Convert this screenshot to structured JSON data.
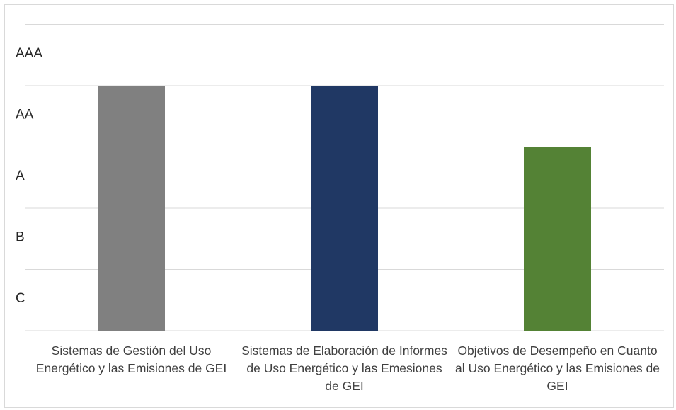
{
  "chart_data": {
    "type": "bar",
    "title": "",
    "xlabel": "",
    "ylabel": "",
    "y_categories": [
      "C",
      "B",
      "A",
      "AA",
      "AAA"
    ],
    "categories": [
      "Sistemas de Gestión del Uso Energético y las Emisiones de GEI",
      "Sistemas de Elaboración de Informes de Uso Energético y las Emesiones de GEI",
      "Objetivos de Desempeño en Cuanto al Uso Energético y las Emisiones de GEI"
    ],
    "values": [
      "AA",
      "AA",
      "A"
    ],
    "colors": [
      "#808080",
      "#203864",
      "#548235"
    ],
    "grid": true,
    "legend": "none"
  }
}
